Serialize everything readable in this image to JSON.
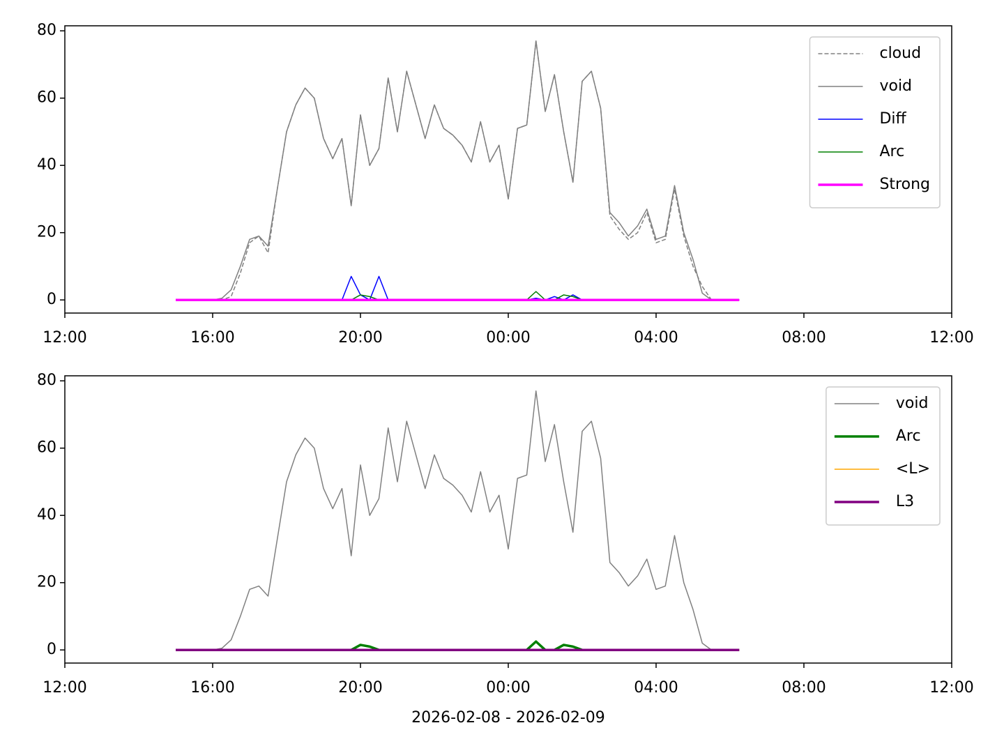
{
  "chart_data": [
    {
      "type": "line",
      "legend": "upper right",
      "x": [
        3,
        3.25,
        3.5,
        3.75,
        4,
        4.25,
        4.5,
        4.75,
        5,
        5.25,
        5.5,
        5.75,
        6,
        6.25,
        6.5,
        6.75,
        7,
        7.25,
        7.5,
        7.75,
        8,
        8.25,
        8.5,
        8.75,
        9,
        9.25,
        9.5,
        9.75,
        10,
        10.25,
        10.5,
        10.75,
        11,
        11.25,
        11.5,
        11.75,
        12,
        12.25,
        12.5,
        12.75,
        13,
        13.25,
        13.5,
        13.75,
        14,
        14.25,
        14.5,
        14.75,
        15,
        15.25,
        15.5,
        15.75,
        16,
        16.25,
        16.5,
        16.75,
        17,
        17.25,
        17.5,
        17.75,
        18,
        18.25
      ],
      "xlim": [
        0,
        24
      ],
      "xticks": [
        {
          "value": 0,
          "label": "12:00"
        },
        {
          "value": 4,
          "label": "16:00"
        },
        {
          "value": 8,
          "label": "20:00"
        },
        {
          "value": 12,
          "label": "00:00"
        },
        {
          "value": 16,
          "label": "04:00"
        },
        {
          "value": 20,
          "label": "08:00"
        },
        {
          "value": 24,
          "label": "12:00"
        }
      ],
      "ylim": [
        -3.9,
        81.5
      ],
      "yticks": [
        0,
        20,
        40,
        60,
        80
      ],
      "series": [
        {
          "name": "cloud",
          "color": "#808080",
          "dashed": true,
          "linewidth": 1.5,
          "values": [
            0,
            0,
            0,
            0,
            0,
            0,
            1,
            8,
            17,
            19,
            14,
            33,
            50,
            58,
            63,
            60,
            48,
            42,
            48,
            28,
            55,
            40,
            45,
            66,
            50,
            68,
            58,
            48,
            58,
            51,
            49,
            46,
            41,
            53,
            41,
            46,
            30,
            51,
            52,
            77,
            56,
            67,
            50,
            35,
            65,
            68,
            57,
            25,
            21,
            18,
            20,
            26,
            17,
            18,
            33,
            19,
            10,
            4,
            0,
            0,
            0,
            0
          ]
        },
        {
          "name": "void",
          "color": "#808080",
          "linewidth": 1.5,
          "values": [
            0,
            0,
            0,
            0,
            0,
            0.5,
            3,
            10,
            18,
            19,
            16,
            33,
            50,
            58,
            63,
            60,
            48,
            42,
            48,
            28,
            55,
            40,
            45,
            66,
            50,
            68,
            58,
            48,
            58,
            51,
            49,
            46,
            41,
            53,
            41,
            46,
            30,
            51,
            52,
            77,
            56,
            67,
            50,
            35,
            65,
            68,
            57,
            26,
            23,
            19,
            22,
            27,
            18,
            19,
            34,
            20,
            12,
            2,
            0,
            0,
            0,
            0
          ]
        },
        {
          "name": "Diff",
          "color": "#0000ff",
          "linewidth": 1.5,
          "values": [
            0,
            0,
            0,
            0,
            0,
            0,
            0,
            0,
            0,
            0,
            0,
            0,
            0,
            0,
            0,
            0,
            0,
            0,
            0,
            7,
            1.5,
            0,
            7,
            0,
            0,
            0,
            0,
            0,
            0,
            0,
            0,
            0,
            0,
            0,
            0,
            0,
            0,
            0,
            0,
            0.5,
            0,
            1,
            0,
            1.5,
            0,
            0,
            0,
            0,
            0,
            0,
            0,
            0,
            0,
            0,
            0,
            0,
            0,
            0,
            0,
            0,
            0,
            0
          ]
        },
        {
          "name": "Arc",
          "color": "#008000",
          "linewidth": 1.5,
          "values": [
            0,
            0,
            0,
            0,
            0,
            0,
            0,
            0,
            0,
            0,
            0,
            0,
            0,
            0,
            0,
            0,
            0,
            0,
            0,
            0,
            1.5,
            1,
            0,
            0,
            0,
            0,
            0,
            0,
            0,
            0,
            0,
            0,
            0,
            0,
            0,
            0,
            0,
            0,
            0,
            2.5,
            0,
            0,
            1.5,
            1,
            0,
            0,
            0,
            0,
            0,
            0,
            0,
            0,
            0,
            0,
            0,
            0,
            0,
            0,
            0,
            0,
            0,
            0
          ]
        },
        {
          "name": "Strong",
          "color": "#ff00ff",
          "linewidth": 3.5,
          "values": [
            0,
            0,
            0,
            0,
            0,
            0,
            0,
            0,
            0,
            0,
            0,
            0,
            0,
            0,
            0,
            0,
            0,
            0,
            0,
            0,
            0,
            0,
            0,
            0,
            0,
            0,
            0,
            0,
            0,
            0,
            0,
            0,
            0,
            0,
            0,
            0,
            0,
            0,
            0,
            0,
            0,
            0,
            0,
            0,
            0,
            0,
            0,
            0,
            0,
            0,
            0,
            0,
            0,
            0,
            0,
            0,
            0,
            0,
            0,
            0,
            0,
            0
          ]
        }
      ]
    },
    {
      "type": "line",
      "legend": "upper right",
      "xlabel": "2026-02-08 - 2026-02-09",
      "x": [
        3,
        3.25,
        3.5,
        3.75,
        4,
        4.25,
        4.5,
        4.75,
        5,
        5.25,
        5.5,
        5.75,
        6,
        6.25,
        6.5,
        6.75,
        7,
        7.25,
        7.5,
        7.75,
        8,
        8.25,
        8.5,
        8.75,
        9,
        9.25,
        9.5,
        9.75,
        10,
        10.25,
        10.5,
        10.75,
        11,
        11.25,
        11.5,
        11.75,
        12,
        12.25,
        12.5,
        12.75,
        13,
        13.25,
        13.5,
        13.75,
        14,
        14.25,
        14.5,
        14.75,
        15,
        15.25,
        15.5,
        15.75,
        16,
        16.25,
        16.5,
        16.75,
        17,
        17.25,
        17.5,
        17.75,
        18,
        18.25
      ],
      "xlim": [
        0,
        24
      ],
      "xticks": [
        {
          "value": 0,
          "label": "12:00"
        },
        {
          "value": 4,
          "label": "16:00"
        },
        {
          "value": 8,
          "label": "20:00"
        },
        {
          "value": 12,
          "label": "00:00"
        },
        {
          "value": 16,
          "label": "04:00"
        },
        {
          "value": 20,
          "label": "08:00"
        },
        {
          "value": 24,
          "label": "12:00"
        }
      ],
      "ylim": [
        -3.9,
        81.5
      ],
      "yticks": [
        0,
        20,
        40,
        60,
        80
      ],
      "series": [
        {
          "name": "void",
          "color": "#808080",
          "linewidth": 1.5,
          "values": [
            0,
            0,
            0,
            0,
            0,
            0.5,
            3,
            10,
            18,
            19,
            16,
            33,
            50,
            58,
            63,
            60,
            48,
            42,
            48,
            28,
            55,
            40,
            45,
            66,
            50,
            68,
            58,
            48,
            58,
            51,
            49,
            46,
            41,
            53,
            41,
            46,
            30,
            51,
            52,
            77,
            56,
            67,
            50,
            35,
            65,
            68,
            57,
            26,
            23,
            19,
            22,
            27,
            18,
            19,
            34,
            20,
            12,
            2,
            0,
            0,
            0,
            0
          ]
        },
        {
          "name": "Arc",
          "color": "#008000",
          "linewidth": 3.5,
          "values": [
            0,
            0,
            0,
            0,
            0,
            0,
            0,
            0,
            0,
            0,
            0,
            0,
            0,
            0,
            0,
            0,
            0,
            0,
            0,
            0,
            1.5,
            1,
            0,
            0,
            0,
            0,
            0,
            0,
            0,
            0,
            0,
            0,
            0,
            0,
            0,
            0,
            0,
            0,
            0,
            2.5,
            0,
            0,
            1.5,
            1,
            0,
            0,
            0,
            0,
            0,
            0,
            0,
            0,
            0,
            0,
            0,
            0,
            0,
            0,
            0,
            0,
            0,
            0
          ]
        },
        {
          "name": "<L>",
          "color": "#ffa500",
          "linewidth": 1.5,
          "values": [
            0,
            0,
            0,
            0,
            0,
            0,
            0,
            0,
            0,
            0,
            0,
            0,
            0,
            0,
            0,
            0,
            0,
            0,
            0,
            0,
            0,
            0,
            0,
            0,
            0,
            0,
            0,
            0,
            0,
            0,
            0,
            0,
            0,
            0,
            0,
            0,
            0,
            0,
            0,
            0,
            0,
            0,
            0,
            0,
            0,
            0,
            0,
            0,
            0,
            0,
            0,
            0,
            0,
            0,
            0,
            0,
            0,
            0,
            0,
            0,
            0,
            0
          ]
        },
        {
          "name": "L3",
          "color": "#800080",
          "linewidth": 3.5,
          "values": [
            0,
            0,
            0,
            0,
            0,
            0,
            0,
            0,
            0,
            0,
            0,
            0,
            0,
            0,
            0,
            0,
            0,
            0,
            0,
            0,
            0,
            0,
            0,
            0,
            0,
            0,
            0,
            0,
            0,
            0,
            0,
            0,
            0,
            0,
            0,
            0,
            0,
            0,
            0,
            0,
            0,
            0,
            0,
            0,
            0,
            0,
            0,
            0,
            0,
            0,
            0,
            0,
            0,
            0,
            0,
            0,
            0,
            0,
            0,
            0,
            0,
            0
          ]
        }
      ]
    }
  ]
}
